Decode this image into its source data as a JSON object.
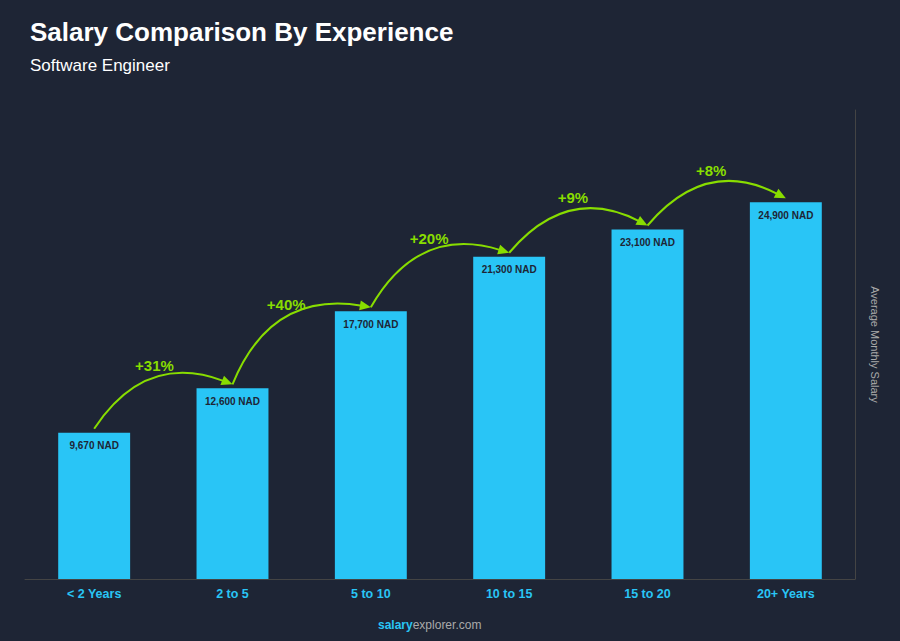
{
  "chart_data": {
    "type": "bar",
    "title": "Salary Comparison By Experience",
    "subtitle": "Software Engineer",
    "ylabel": "Average Monthly Salary",
    "categories": [
      "< 2 Years",
      "2 to 5",
      "5 to 10",
      "10 to 15",
      "15 to 20",
      "20+ Years"
    ],
    "values": [
      9670,
      12600,
      17700,
      21300,
      23100,
      24900
    ],
    "value_labels": [
      "9,670 NAD",
      "12,600 NAD",
      "17,700 NAD",
      "21,300 NAD",
      "23,100 NAD",
      "24,900 NAD"
    ],
    "data_labels": true,
    "color": "#29C5F6",
    "annotations": [
      "+31%",
      "+40%",
      "+20%",
      "+9%",
      "+8%"
    ],
    "watermark": [
      "salary",
      "explorer.com"
    ],
    "ylim": [
      0,
      31000
    ],
    "grid": false,
    "tick_labels": "x"
  }
}
